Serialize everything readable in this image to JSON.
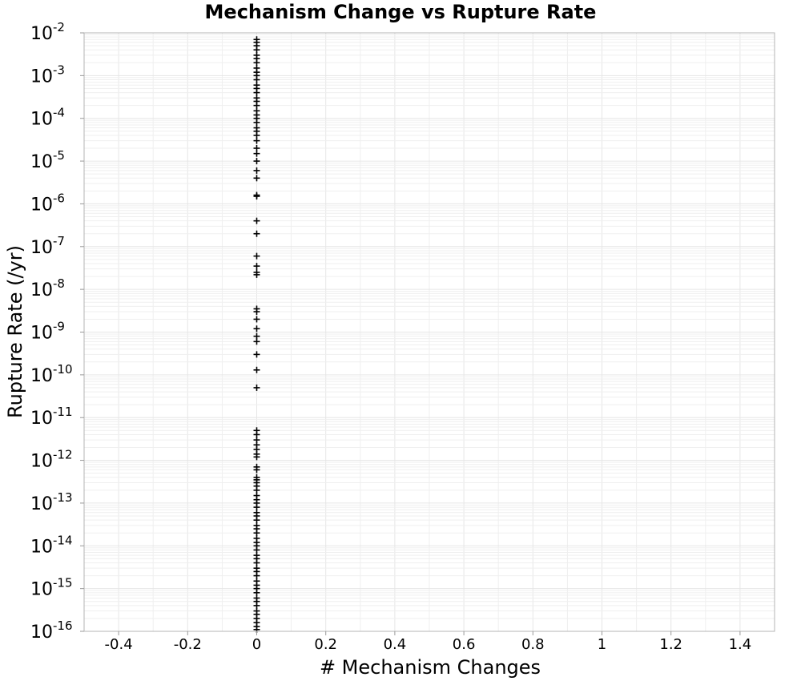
{
  "chart_data": {
    "type": "scatter",
    "title": "Mechanism Change vs Rupture Rate",
    "xlabel": "# Mechanism Changes",
    "ylabel": "Rupture Rate (/yr)",
    "xlim": [
      -0.5,
      1.5
    ],
    "ylim": [
      1e-16,
      0.01
    ],
    "yscale": "log",
    "grid": true,
    "marker": "plus",
    "xticks": [
      "-0.4",
      "-0.2",
      "0",
      "0.2",
      "0.4",
      "0.6",
      "0.8",
      "1",
      "1.2",
      "1.4"
    ],
    "yticks": [
      {
        "base": "10",
        "exp": "-2"
      },
      {
        "base": "10",
        "exp": "-3"
      },
      {
        "base": "10",
        "exp": "-4"
      },
      {
        "base": "10",
        "exp": "-5"
      },
      {
        "base": "10",
        "exp": "-6"
      },
      {
        "base": "10",
        "exp": "-7"
      },
      {
        "base": "10",
        "exp": "-8"
      },
      {
        "base": "10",
        "exp": "-9"
      },
      {
        "base": "10",
        "exp": "-10"
      },
      {
        "base": "10",
        "exp": "-11"
      },
      {
        "base": "10",
        "exp": "-12"
      },
      {
        "base": "10",
        "exp": "-13"
      },
      {
        "base": "10",
        "exp": "-14"
      },
      {
        "base": "10",
        "exp": "-15"
      },
      {
        "base": "10",
        "exp": "-16"
      }
    ],
    "points": [
      {
        "x": 0,
        "y": 0.007
      },
      {
        "x": 0,
        "y": 0.006
      },
      {
        "x": 0,
        "y": 0.005
      },
      {
        "x": 0,
        "y": 0.004
      },
      {
        "x": 0,
        "y": 0.003
      },
      {
        "x": 0,
        "y": 0.0025
      },
      {
        "x": 0,
        "y": 0.002
      },
      {
        "x": 0,
        "y": 0.0015
      },
      {
        "x": 0,
        "y": 0.0012
      },
      {
        "x": 0,
        "y": 0.001
      },
      {
        "x": 0,
        "y": 0.0008
      },
      {
        "x": 0,
        "y": 0.0006
      },
      {
        "x": 0,
        "y": 0.0005
      },
      {
        "x": 0,
        "y": 0.0004
      },
      {
        "x": 0,
        "y": 0.0003
      },
      {
        "x": 0,
        "y": 0.00025
      },
      {
        "x": 0,
        "y": 0.0002
      },
      {
        "x": 0,
        "y": 0.00015
      },
      {
        "x": 0,
        "y": 0.00012
      },
      {
        "x": 0,
        "y": 0.0001
      },
      {
        "x": 0,
        "y": 8e-05
      },
      {
        "x": 0,
        "y": 6e-05
      },
      {
        "x": 0,
        "y": 5e-05
      },
      {
        "x": 0,
        "y": 4e-05
      },
      {
        "x": 0,
        "y": 3e-05
      },
      {
        "x": 0,
        "y": 2e-05
      },
      {
        "x": 0,
        "y": 1.5e-05
      },
      {
        "x": 0,
        "y": 1e-05
      },
      {
        "x": 0,
        "y": 6e-06
      },
      {
        "x": 0,
        "y": 4e-06
      },
      {
        "x": 0,
        "y": 1.6e-06
      },
      {
        "x": 0,
        "y": 1.5e-06
      },
      {
        "x": 0,
        "y": 4e-07
      },
      {
        "x": 0,
        "y": 2e-07
      },
      {
        "x": 0,
        "y": 6e-08
      },
      {
        "x": 0,
        "y": 3.5e-08
      },
      {
        "x": 0,
        "y": 2.5e-08
      },
      {
        "x": 0,
        "y": 2.2e-08
      },
      {
        "x": 0,
        "y": 3.5e-09
      },
      {
        "x": 0,
        "y": 3e-09
      },
      {
        "x": 0,
        "y": 2e-09
      },
      {
        "x": 0,
        "y": 1.2e-09
      },
      {
        "x": 0,
        "y": 8e-10
      },
      {
        "x": 0,
        "y": 6e-10
      },
      {
        "x": 0,
        "y": 3e-10
      },
      {
        "x": 0,
        "y": 1.3e-10
      },
      {
        "x": 0,
        "y": 5e-11
      },
      {
        "x": 0,
        "y": 5e-12
      },
      {
        "x": 0,
        "y": 4e-12
      },
      {
        "x": 0,
        "y": 3e-12
      },
      {
        "x": 0,
        "y": 2.3e-12
      },
      {
        "x": 0,
        "y": 1.8e-12
      },
      {
        "x": 0,
        "y": 1.4e-12
      },
      {
        "x": 0,
        "y": 1.2e-12
      },
      {
        "x": 0,
        "y": 7e-13
      },
      {
        "x": 0,
        "y": 6e-13
      },
      {
        "x": 0,
        "y": 4e-13
      },
      {
        "x": 0,
        "y": 3.5e-13
      },
      {
        "x": 0,
        "y": 3e-13
      },
      {
        "x": 0,
        "y": 2.5e-13
      },
      {
        "x": 0,
        "y": 2e-13
      },
      {
        "x": 0,
        "y": 1.5e-13
      },
      {
        "x": 0,
        "y": 1.2e-13
      },
      {
        "x": 0,
        "y": 1e-13
      },
      {
        "x": 0,
        "y": 8e-14
      },
      {
        "x": 0,
        "y": 6e-14
      },
      {
        "x": 0,
        "y": 5e-14
      },
      {
        "x": 0,
        "y": 4e-14
      },
      {
        "x": 0,
        "y": 3e-14
      },
      {
        "x": 0,
        "y": 2.5e-14
      },
      {
        "x": 0,
        "y": 2e-14
      },
      {
        "x": 0,
        "y": 1.5e-14
      },
      {
        "x": 0,
        "y": 1.2e-14
      },
      {
        "x": 0,
        "y": 1e-14
      },
      {
        "x": 0,
        "y": 8e-15
      },
      {
        "x": 0,
        "y": 6e-15
      },
      {
        "x": 0,
        "y": 5e-15
      },
      {
        "x": 0,
        "y": 4e-15
      },
      {
        "x": 0,
        "y": 3e-15
      },
      {
        "x": 0,
        "y": 2.5e-15
      },
      {
        "x": 0,
        "y": 2e-15
      },
      {
        "x": 0,
        "y": 1.5e-15
      },
      {
        "x": 0,
        "y": 1.2e-15
      },
      {
        "x": 0,
        "y": 1e-15
      },
      {
        "x": 0,
        "y": 8e-16
      },
      {
        "x": 0,
        "y": 6e-16
      },
      {
        "x": 0,
        "y": 5e-16
      },
      {
        "x": 0,
        "y": 4e-16
      },
      {
        "x": 0,
        "y": 3e-16
      },
      {
        "x": 0,
        "y": 2.5e-16
      },
      {
        "x": 0,
        "y": 2e-16
      },
      {
        "x": 0,
        "y": 1.6e-16
      },
      {
        "x": 0,
        "y": 1.3e-16
      },
      {
        "x": 0,
        "y": 1.1e-16
      }
    ]
  }
}
